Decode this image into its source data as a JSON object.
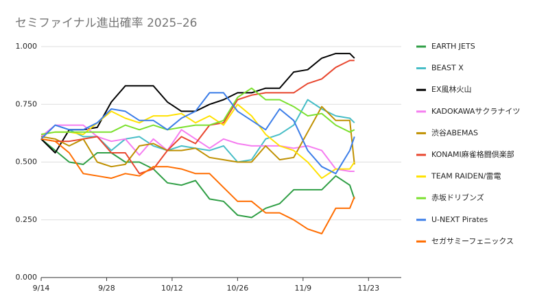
{
  "chart_data": {
    "type": "line",
    "title": "セミファイナル進出確率 2025–26",
    "x": [
      "9/14",
      "9/17",
      "9/20",
      "9/23",
      "9/26",
      "9/29",
      "10/2",
      "10/5",
      "10/8",
      "10/11",
      "10/14",
      "10/17",
      "10/20",
      "10/23",
      "10/26",
      "10/29",
      "11/1",
      "11/4",
      "11/7",
      "11/10",
      "11/13",
      "11/16",
      "11/19",
      "11/20"
    ],
    "xlim": [
      "9/14",
      "11/30"
    ],
    "xticks": [
      "9/14",
      "9/28",
      "10/12",
      "10/26",
      "11/9",
      "11/23"
    ],
    "ylim": [
      0,
      1
    ],
    "yticks": [
      {
        "value": 0,
        "label": "0.000"
      },
      {
        "value": 0.25,
        "label": "0.250"
      },
      {
        "value": 0.5,
        "label": "0.500"
      },
      {
        "value": 0.75,
        "label": "0.750"
      },
      {
        "value": 1,
        "label": "1.000"
      }
    ],
    "grid": true,
    "legend": "right",
    "series": [
      {
        "name": "EARTH JETS",
        "color": "#2e9e44",
        "values": [
          0.6,
          0.55,
          0.5,
          0.49,
          0.54,
          0.54,
          0.5,
          0.5,
          0.47,
          0.41,
          0.4,
          0.42,
          0.34,
          0.33,
          0.27,
          0.26,
          0.3,
          0.32,
          0.38,
          0.38,
          0.38,
          0.44,
          0.4,
          0.34
        ]
      },
      {
        "name": "BEAST X",
        "color": "#46bdc6",
        "values": [
          0.6,
          0.66,
          0.64,
          0.61,
          0.61,
          0.55,
          0.6,
          0.61,
          0.57,
          0.55,
          0.57,
          0.56,
          0.55,
          0.57,
          0.5,
          0.51,
          0.6,
          0.62,
          0.66,
          0.77,
          0.73,
          0.7,
          0.69,
          0.67
        ]
      },
      {
        "name": "EX風林火山",
        "color": "#000000",
        "values": [
          0.6,
          0.54,
          0.64,
          0.64,
          0.65,
          0.76,
          0.83,
          0.83,
          0.83,
          0.76,
          0.72,
          0.72,
          0.75,
          0.77,
          0.8,
          0.8,
          0.82,
          0.82,
          0.89,
          0.9,
          0.95,
          0.97,
          0.97,
          0.95
        ]
      },
      {
        "name": "KADOKAWAサクラナイツ",
        "color": "#f57cf0",
        "values": [
          0.61,
          0.66,
          0.66,
          0.66,
          0.61,
          0.59,
          0.6,
          0.53,
          0.6,
          0.55,
          0.64,
          0.6,
          0.56,
          0.6,
          0.58,
          0.57,
          0.57,
          0.57,
          0.56,
          0.57,
          0.55,
          0.47,
          0.46,
          0.46
        ]
      },
      {
        "name": "渋谷ABEMAS",
        "color": "#bf9000",
        "values": [
          0.61,
          0.6,
          0.57,
          0.6,
          0.5,
          0.48,
          0.49,
          0.57,
          0.58,
          0.55,
          0.55,
          0.56,
          0.52,
          0.51,
          0.5,
          0.5,
          0.57,
          0.51,
          0.52,
          0.63,
          0.74,
          0.68,
          0.68,
          0.49
        ]
      },
      {
        "name": "KONAMI麻雀格闘倶楽部",
        "color": "#e8462e",
        "values": [
          0.6,
          0.59,
          0.59,
          0.6,
          0.61,
          0.54,
          0.54,
          0.45,
          0.47,
          0.55,
          0.61,
          0.58,
          0.66,
          0.67,
          0.77,
          0.79,
          0.8,
          0.8,
          0.8,
          0.84,
          0.86,
          0.91,
          0.94,
          0.94
        ]
      },
      {
        "name": "TEAM RAIDEN/雷電",
        "color": "#ffe100",
        "values": [
          0.62,
          0.63,
          0.63,
          0.62,
          0.67,
          0.72,
          0.69,
          0.67,
          0.7,
          0.7,
          0.71,
          0.67,
          0.7,
          0.66,
          0.75,
          0.7,
          0.62,
          0.57,
          0.55,
          0.5,
          0.43,
          0.47,
          0.47,
          0.5
        ]
      },
      {
        "name": "赤坂ドリブンズ",
        "color": "#7be02e",
        "values": [
          0.62,
          0.63,
          0.63,
          0.63,
          0.63,
          0.63,
          0.66,
          0.64,
          0.66,
          0.64,
          0.65,
          0.66,
          0.66,
          0.68,
          0.78,
          0.82,
          0.77,
          0.77,
          0.74,
          0.7,
          0.71,
          0.66,
          0.63,
          0.64
        ]
      },
      {
        "name": "U-NEXT Pirates",
        "color": "#3b7de8",
        "values": [
          0.6,
          0.66,
          0.64,
          0.64,
          0.67,
          0.73,
          0.72,
          0.68,
          0.68,
          0.64,
          0.69,
          0.72,
          0.8,
          0.8,
          0.72,
          0.68,
          0.64,
          0.73,
          0.68,
          0.55,
          0.48,
          0.45,
          0.55,
          0.61
        ]
      },
      {
        "name": "セガサミーフェニックス",
        "color": "#ff6d00",
        "values": [
          0.6,
          0.59,
          0.54,
          0.45,
          0.44,
          0.43,
          0.45,
          0.44,
          0.48,
          0.48,
          0.47,
          0.45,
          0.45,
          0.39,
          0.33,
          0.33,
          0.28,
          0.28,
          0.25,
          0.21,
          0.19,
          0.3,
          0.3,
          0.35
        ]
      }
    ]
  }
}
